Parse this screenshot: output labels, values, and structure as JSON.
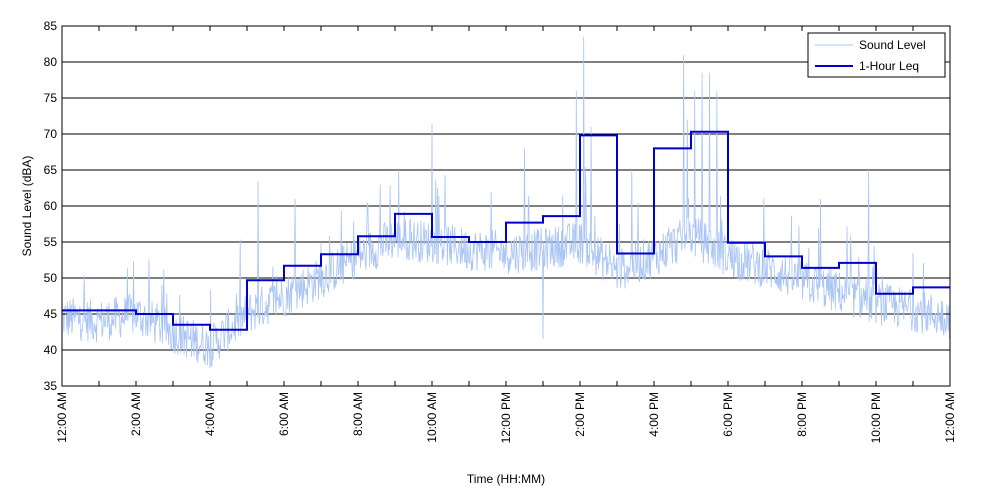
{
  "chart_data": {
    "type": "line",
    "title": "",
    "xlabel": "Time (HH:MM)",
    "ylabel": "Sound Level (dBA)",
    "xlim": [
      0,
      24
    ],
    "ylim": [
      35,
      85
    ],
    "yticks": [
      35,
      40,
      45,
      50,
      55,
      60,
      65,
      70,
      75,
      80,
      85
    ],
    "xticks": [
      0,
      2,
      4,
      6,
      8,
      10,
      12,
      14,
      16,
      18,
      20,
      22,
      24
    ],
    "xtick_labels": [
      "12:00 AM",
      "2:00 AM",
      "4:00 AM",
      "6:00 AM",
      "8:00 AM",
      "10:00 AM",
      "12:00 PM",
      "2:00 PM",
      "4:00 PM",
      "6:00 PM",
      "8:00 PM",
      "10:00 PM",
      "12:00 AM"
    ],
    "grid": "horizontal",
    "legend_position": "top-right",
    "series": [
      {
        "name": "Sound Level",
        "color": "#a9c4f5",
        "kind": "noisy",
        "baseline_profile": [
          [
            0,
            44.5
          ],
          [
            1,
            44.0
          ],
          [
            2,
            45.0
          ],
          [
            3,
            42.5
          ],
          [
            4,
            40.5
          ],
          [
            5,
            45.0
          ],
          [
            6,
            47.5
          ],
          [
            7,
            50.0
          ],
          [
            8,
            53.0
          ],
          [
            9,
            55.5
          ],
          [
            10,
            55.0
          ],
          [
            11,
            54.0
          ],
          [
            12,
            53.5
          ],
          [
            13,
            54.0
          ],
          [
            14,
            55.0
          ],
          [
            15,
            51.0
          ],
          [
            16,
            53.0
          ],
          [
            17,
            56.0
          ],
          [
            18,
            53.0
          ],
          [
            19,
            51.5
          ],
          [
            20,
            49.5
          ],
          [
            21,
            48.0
          ],
          [
            22,
            46.5
          ],
          [
            23,
            45.5
          ],
          [
            24,
            44.5
          ]
        ],
        "peaks": [
          [
            5.3,
            63.5
          ],
          [
            8.6,
            63.0
          ],
          [
            10.0,
            71.5
          ],
          [
            13.0,
            65.0
          ],
          [
            14.1,
            83.5
          ],
          [
            13.9,
            76.0
          ],
          [
            14.3,
            71.0
          ],
          [
            15.4,
            65.0
          ],
          [
            16.8,
            81.0
          ],
          [
            17.3,
            78.5
          ],
          [
            17.5,
            78.5
          ],
          [
            17.7,
            76.0
          ],
          [
            17.1,
            76.0
          ],
          [
            16.9,
            72.0
          ],
          [
            21.8,
            65.0
          ],
          [
            11.6,
            62.0
          ],
          [
            12.5,
            68.0
          ],
          [
            9.1,
            65.0
          ],
          [
            6.3,
            61.0
          ],
          [
            20.5,
            61.0
          ]
        ],
        "dips": [
          [
            4.0,
            37.5
          ],
          [
            13.0,
            41.5
          ],
          [
            3.5,
            39.0
          ]
        ]
      },
      {
        "name": "1-Hour Leq",
        "color": "#0000cc",
        "kind": "step",
        "x": [
          0,
          1,
          2,
          3,
          4,
          5,
          6,
          7,
          8,
          9,
          10,
          11,
          12,
          13,
          14,
          15,
          16,
          17,
          18,
          19,
          20,
          21,
          22,
          23
        ],
        "values": [
          45.5,
          45.5,
          45.0,
          43.5,
          42.8,
          49.7,
          51.7,
          53.3,
          55.8,
          58.9,
          55.7,
          55.0,
          57.7,
          58.6,
          69.8,
          53.4,
          68.0,
          70.3,
          54.9,
          53.0,
          51.4,
          52.1,
          47.8,
          48.7
        ]
      }
    ]
  }
}
